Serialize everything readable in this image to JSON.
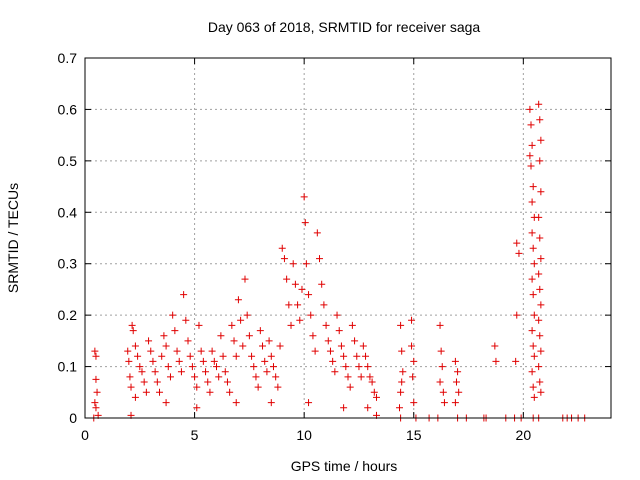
{
  "chart_data": {
    "type": "scatter",
    "title": "Day 063 of 2018, SRMTID for receiver saga",
    "xlabel": "GPS time / hours",
    "ylabel": "SRMTID / TECUs",
    "xlim": [
      0,
      24
    ],
    "ylim": [
      0,
      0.7
    ],
    "x_ticks": [
      0,
      5,
      10,
      15,
      20
    ],
    "x_tick_labels": [
      "0",
      "5",
      "10",
      "15",
      "20"
    ],
    "y_ticks": [
      0,
      0.1,
      0.2,
      0.3,
      0.4,
      0.5,
      0.6,
      0.7
    ],
    "y_tick_labels": [
      "0",
      "0.1",
      "0.2",
      "0.3",
      "0.4",
      "0.5",
      "0.6",
      "0.7"
    ],
    "grid": true,
    "marker": "+",
    "marker_color": "#e00000",
    "series": [
      {
        "name": "SRMTID",
        "points": [
          [
            0.45,
            0.13
          ],
          [
            0.5,
            0.12
          ],
          [
            0.5,
            0.075
          ],
          [
            0.55,
            0.05
          ],
          [
            0.45,
            0.03
          ],
          [
            0.5,
            0.02
          ],
          [
            0.6,
            0.005
          ],
          [
            0.4,
            0.0
          ],
          [
            1.95,
            0.13
          ],
          [
            2.0,
            0.11
          ],
          [
            2.05,
            0.08
          ],
          [
            2.1,
            0.06
          ],
          [
            2.15,
            0.18
          ],
          [
            2.2,
            0.17
          ],
          [
            2.3,
            0.14
          ],
          [
            2.4,
            0.12
          ],
          [
            2.5,
            0.1
          ],
          [
            2.6,
            0.09
          ],
          [
            2.7,
            0.07
          ],
          [
            2.8,
            0.05
          ],
          [
            2.9,
            0.15
          ],
          [
            3.0,
            0.13
          ],
          [
            3.1,
            0.11
          ],
          [
            3.2,
            0.09
          ],
          [
            3.3,
            0.07
          ],
          [
            3.4,
            0.05
          ],
          [
            3.5,
            0.12
          ],
          [
            3.6,
            0.16
          ],
          [
            3.7,
            0.14
          ],
          [
            3.8,
            0.1
          ],
          [
            3.9,
            0.08
          ],
          [
            4.0,
            0.2
          ],
          [
            4.1,
            0.17
          ],
          [
            4.2,
            0.13
          ],
          [
            4.3,
            0.11
          ],
          [
            4.4,
            0.09
          ],
          [
            4.5,
            0.24
          ],
          [
            4.6,
            0.19
          ],
          [
            4.7,
            0.15
          ],
          [
            4.8,
            0.12
          ],
          [
            4.9,
            0.1
          ],
          [
            5.0,
            0.08
          ],
          [
            5.1,
            0.06
          ],
          [
            5.2,
            0.18
          ],
          [
            5.3,
            0.13
          ],
          [
            5.4,
            0.11
          ],
          [
            5.5,
            0.09
          ],
          [
            5.6,
            0.07
          ],
          [
            5.7,
            0.05
          ],
          [
            5.8,
            0.13
          ],
          [
            5.9,
            0.11
          ],
          [
            6.0,
            0.1
          ],
          [
            6.1,
            0.08
          ],
          [
            6.2,
            0.16
          ],
          [
            6.3,
            0.12
          ],
          [
            6.4,
            0.09
          ],
          [
            6.5,
            0.07
          ],
          [
            6.6,
            0.05
          ],
          [
            6.7,
            0.18
          ],
          [
            6.8,
            0.15
          ],
          [
            6.9,
            0.12
          ],
          [
            7.0,
            0.23
          ],
          [
            7.1,
            0.19
          ],
          [
            7.2,
            0.14
          ],
          [
            7.3,
            0.27
          ],
          [
            7.4,
            0.2
          ],
          [
            7.5,
            0.16
          ],
          [
            7.6,
            0.12
          ],
          [
            7.7,
            0.1
          ],
          [
            7.8,
            0.08
          ],
          [
            7.9,
            0.06
          ],
          [
            8.0,
            0.17
          ],
          [
            8.1,
            0.14
          ],
          [
            8.2,
            0.11
          ],
          [
            8.3,
            0.09
          ],
          [
            8.4,
            0.15
          ],
          [
            8.5,
            0.12
          ],
          [
            8.6,
            0.1
          ],
          [
            8.7,
            0.08
          ],
          [
            8.8,
            0.06
          ],
          [
            8.9,
            0.14
          ],
          [
            9.0,
            0.33
          ],
          [
            9.1,
            0.31
          ],
          [
            9.2,
            0.27
          ],
          [
            9.3,
            0.22
          ],
          [
            9.4,
            0.18
          ],
          [
            9.5,
            0.3
          ],
          [
            9.6,
            0.26
          ],
          [
            9.7,
            0.22
          ],
          [
            9.8,
            0.19
          ],
          [
            9.9,
            0.25
          ],
          [
            10.0,
            0.43
          ],
          [
            10.05,
            0.38
          ],
          [
            10.1,
            0.3
          ],
          [
            10.2,
            0.24
          ],
          [
            10.3,
            0.2
          ],
          [
            10.4,
            0.16
          ],
          [
            10.5,
            0.13
          ],
          [
            10.6,
            0.36
          ],
          [
            10.7,
            0.31
          ],
          [
            10.8,
            0.26
          ],
          [
            10.9,
            0.22
          ],
          [
            11.0,
            0.18
          ],
          [
            11.1,
            0.15
          ],
          [
            11.2,
            0.13
          ],
          [
            11.3,
            0.11
          ],
          [
            11.4,
            0.09
          ],
          [
            11.5,
            0.2
          ],
          [
            11.6,
            0.17
          ],
          [
            11.7,
            0.14
          ],
          [
            11.8,
            0.12
          ],
          [
            11.9,
            0.1
          ],
          [
            12.0,
            0.08
          ],
          [
            12.1,
            0.06
          ],
          [
            12.2,
            0.18
          ],
          [
            12.3,
            0.15
          ],
          [
            12.4,
            0.12
          ],
          [
            12.5,
            0.1
          ],
          [
            12.6,
            0.08
          ],
          [
            12.7,
            0.14
          ],
          [
            12.8,
            0.12
          ],
          [
            12.9,
            0.1
          ],
          [
            13.0,
            0.08
          ],
          [
            13.1,
            0.07
          ],
          [
            13.2,
            0.05
          ],
          [
            13.3,
            0.04
          ],
          [
            2.3,
            0.04
          ],
          [
            3.7,
            0.03
          ],
          [
            5.1,
            0.02
          ],
          [
            6.9,
            0.03
          ],
          [
            8.5,
            0.03
          ],
          [
            10.2,
            0.03
          ],
          [
            11.8,
            0.02
          ],
          [
            12.9,
            0.02
          ],
          [
            2.1,
            0.005
          ],
          [
            13.3,
            0.005
          ],
          [
            14.4,
            0.18
          ],
          [
            14.45,
            0.13
          ],
          [
            14.5,
            0.09
          ],
          [
            14.45,
            0.07
          ],
          [
            14.4,
            0.05
          ],
          [
            14.35,
            0.02
          ],
          [
            14.4,
            0.0
          ],
          [
            14.9,
            0.19
          ],
          [
            14.9,
            0.14
          ],
          [
            15.0,
            0.11
          ],
          [
            14.95,
            0.08
          ],
          [
            15.0,
            0.03
          ],
          [
            15.1,
            0.0
          ],
          [
            15.7,
            0.0
          ],
          [
            16.2,
            0.18
          ],
          [
            16.25,
            0.13
          ],
          [
            16.3,
            0.1
          ],
          [
            16.2,
            0.07
          ],
          [
            16.35,
            0.05
          ],
          [
            16.4,
            0.03
          ],
          [
            16.1,
            0.0
          ],
          [
            16.9,
            0.11
          ],
          [
            17.0,
            0.09
          ],
          [
            16.95,
            0.07
          ],
          [
            17.05,
            0.05
          ],
          [
            16.9,
            0.03
          ],
          [
            17.0,
            0.0
          ],
          [
            17.4,
            0.0
          ],
          [
            18.2,
            0.0
          ],
          [
            18.7,
            0.14
          ],
          [
            18.75,
            0.11
          ],
          [
            18.3,
            0.0
          ],
          [
            19.2,
            0.0
          ],
          [
            19.7,
            0.34
          ],
          [
            19.8,
            0.32
          ],
          [
            19.7,
            0.2
          ],
          [
            19.65,
            0.11
          ],
          [
            19.6,
            0.0
          ],
          [
            19.9,
            0.0
          ],
          [
            20.3,
            0.6
          ],
          [
            20.35,
            0.57
          ],
          [
            20.4,
            0.53
          ],
          [
            20.3,
            0.51
          ],
          [
            20.35,
            0.49
          ],
          [
            20.45,
            0.45
          ],
          [
            20.4,
            0.42
          ],
          [
            20.5,
            0.39
          ],
          [
            20.4,
            0.36
          ],
          [
            20.45,
            0.33
          ],
          [
            20.5,
            0.3
          ],
          [
            20.4,
            0.27
          ],
          [
            20.45,
            0.24
          ],
          [
            20.5,
            0.2
          ],
          [
            20.4,
            0.17
          ],
          [
            20.45,
            0.14
          ],
          [
            20.5,
            0.12
          ],
          [
            20.4,
            0.09
          ],
          [
            20.45,
            0.06
          ],
          [
            20.5,
            0.04
          ],
          [
            20.45,
            0.0
          ],
          [
            20.7,
            0.61
          ],
          [
            20.75,
            0.58
          ],
          [
            20.8,
            0.54
          ],
          [
            20.75,
            0.5
          ],
          [
            20.8,
            0.44
          ],
          [
            20.7,
            0.39
          ],
          [
            20.75,
            0.35
          ],
          [
            20.8,
            0.31
          ],
          [
            20.7,
            0.28
          ],
          [
            20.75,
            0.25
          ],
          [
            20.8,
            0.22
          ],
          [
            20.7,
            0.19
          ],
          [
            20.75,
            0.16
          ],
          [
            20.8,
            0.13
          ],
          [
            20.7,
            0.1
          ],
          [
            20.75,
            0.07
          ],
          [
            20.8,
            0.05
          ],
          [
            20.7,
            0.0
          ],
          [
            21.8,
            0.0
          ],
          [
            22.0,
            0.0
          ],
          [
            22.2,
            0.0
          ],
          [
            22.5,
            0.0
          ],
          [
            22.8,
            0.0
          ]
        ]
      }
    ]
  }
}
